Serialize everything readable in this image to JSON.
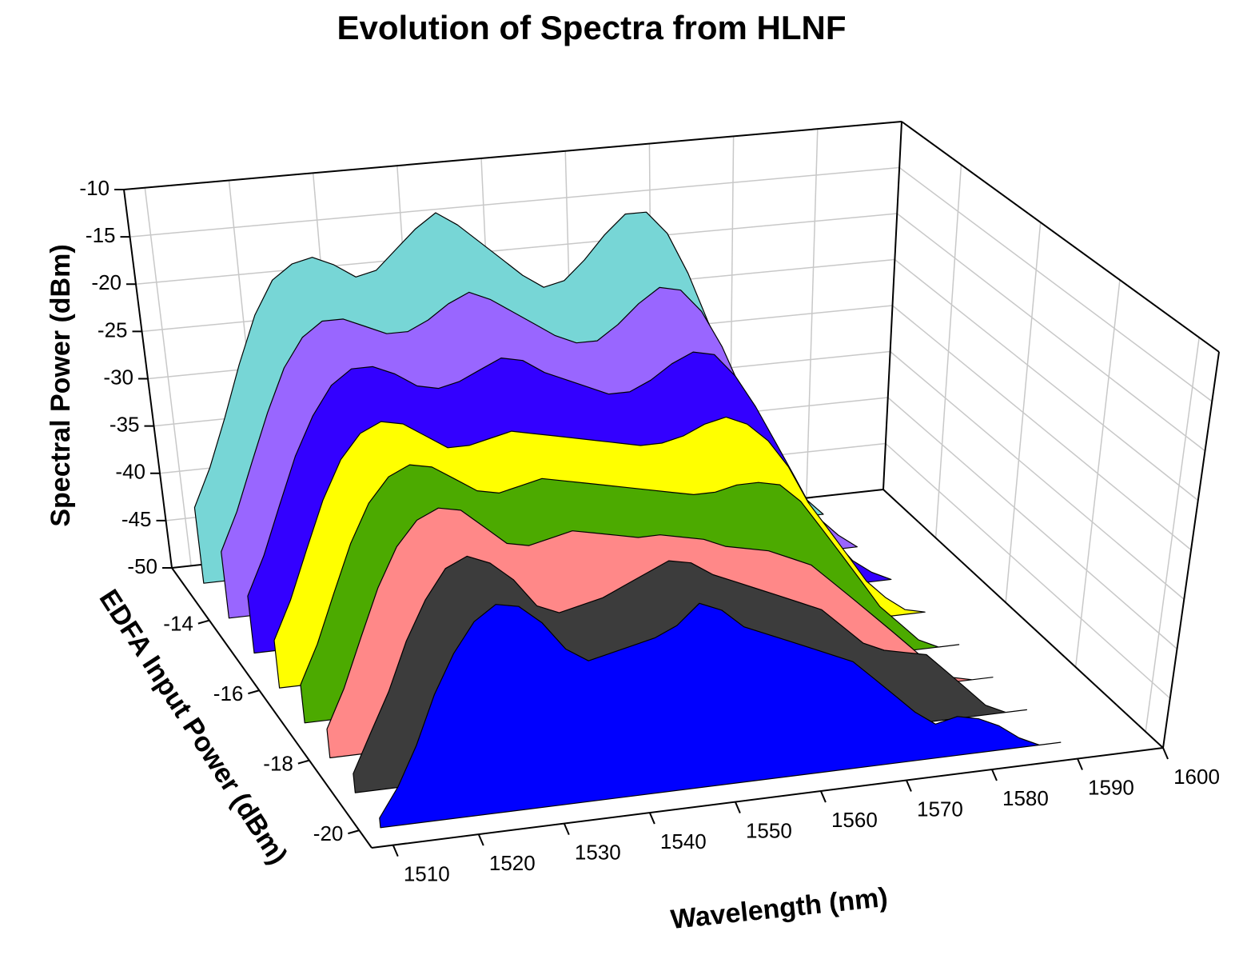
{
  "chart_data": {
    "type": "waterfall3d",
    "title": "Evolution of Spectra from HLNF",
    "xlabel": "Wavelength (nm)",
    "ylabel": "Spectral Power (dBm)",
    "zlabel": "EDFA Input Power (dBm)",
    "xlim": [
      1507.5,
      1600
    ],
    "xticks": [
      1510,
      1520,
      1530,
      1540,
      1550,
      1560,
      1570,
      1580,
      1590,
      1600
    ],
    "ylim": [
      -50,
      -10
    ],
    "yticks": [
      -50,
      -45,
      -40,
      -35,
      -30,
      -25,
      -20,
      -15,
      -10
    ],
    "zlim": [
      -20.5,
      -12.5
    ],
    "zticks": [
      -20,
      -18,
      -16,
      -14
    ],
    "grid": true,
    "x": [
      1510,
      1512.5,
      1515,
      1517.5,
      1520,
      1522.5,
      1525,
      1527.5,
      1530,
      1532.5,
      1535,
      1537.5,
      1540,
      1542.5,
      1545,
      1547.5,
      1550,
      1552.5,
      1555,
      1557.5,
      1560,
      1562.5,
      1565,
      1567.5,
      1570,
      1572.5,
      1575,
      1577.5,
      1580,
      1582.5,
      1585,
      1587.5,
      1590
    ],
    "series": [
      {
        "z": -13,
        "color": "#77d6d6",
        "values": [
          -42,
          -38,
          -33,
          -27.5,
          -22.5,
          -19,
          -17.5,
          -17,
          -18,
          -19.5,
          -19,
          -17,
          -15,
          -13.5,
          -15,
          -17,
          -19,
          -21,
          -22.5,
          -22,
          -20,
          -17.5,
          -15.5,
          -15.5,
          -18,
          -22.5,
          -28,
          -33,
          -38,
          -42,
          -45,
          -48,
          -50
        ]
      },
      {
        "z": -14,
        "color": "#9966ff",
        "values": [
          -43,
          -39,
          -34,
          -29,
          -24.5,
          -21.5,
          -20,
          -20,
          -21,
          -22,
          -22,
          -21,
          -19.5,
          -18.5,
          -19.5,
          -21,
          -22.5,
          -24,
          -25,
          -25,
          -23.5,
          -21.5,
          -20,
          -20.5,
          -23,
          -27,
          -32,
          -36,
          -40,
          -44,
          -46.5,
          -48.5,
          -50
        ]
      },
      {
        "z": -15,
        "color": "#3300ff",
        "values": [
          -44,
          -40,
          -35,
          -30,
          -26,
          -23,
          -21.5,
          -21.5,
          -22.5,
          -24,
          -24.5,
          -24,
          -23,
          -22,
          -22.5,
          -24,
          -25,
          -26,
          -27,
          -27,
          -26,
          -24.5,
          -23.5,
          -24,
          -26.5,
          -30,
          -34,
          -38,
          -42,
          -45,
          -47.5,
          -49,
          -50
        ]
      },
      {
        "z": -16,
        "color": "#ffff00",
        "values": [
          -45,
          -41,
          -36,
          -31,
          -27,
          -24.5,
          -23.5,
          -24,
          -25.5,
          -27,
          -27,
          -26.5,
          -26,
          -26.5,
          -27,
          -27.5,
          -28,
          -28.5,
          -29,
          -29,
          -28.5,
          -27.5,
          -27,
          -28,
          -30,
          -33,
          -37,
          -40,
          -43,
          -46,
          -48,
          -49.5,
          -50
        ]
      },
      {
        "z": -17,
        "color": "#4caa00",
        "values": [
          -46,
          -42,
          -37,
          -32,
          -28,
          -25.5,
          -24.5,
          -25,
          -26.5,
          -28,
          -28.5,
          -28,
          -27.5,
          -28,
          -28.5,
          -29,
          -29.5,
          -30,
          -30.5,
          -31,
          -31,
          -30.5,
          -30.5,
          -31,
          -33,
          -36,
          -39,
          -42,
          -45,
          -47,
          -49,
          -50,
          -50
        ]
      },
      {
        "z": -18,
        "color": "#ff8888",
        "values": [
          -47,
          -43,
          -38,
          -33,
          -29,
          -26.5,
          -25.5,
          -26,
          -28,
          -30,
          -30.5,
          -30,
          -29.5,
          -30,
          -30.5,
          -31,
          -31,
          -31.5,
          -32,
          -33,
          -33.5,
          -34,
          -35,
          -36,
          -38,
          -40,
          -42,
          -44,
          -46,
          -48,
          -49.5,
          -50,
          -50
        ]
      },
      {
        "z": -19,
        "color": "#3c3c3c",
        "values": [
          -48,
          -44,
          -40,
          -35,
          -31,
          -28,
          -27,
          -28,
          -30,
          -33,
          -34,
          -33.5,
          -33,
          -32,
          -31,
          -30,
          -30.5,
          -32,
          -33,
          -34,
          -35,
          -36,
          -37,
          -39,
          -41,
          -42,
          -42.5,
          -43,
          -45,
          -47,
          -49,
          -50,
          -50
        ]
      },
      {
        "z": -20,
        "color": "#0000ff",
        "values": [
          -49,
          -46,
          -42,
          -37,
          -33,
          -30,
          -28.5,
          -29,
          -31,
          -34,
          -35.5,
          -35,
          -34.5,
          -34,
          -33,
          -31,
          -32,
          -34,
          -35,
          -36,
          -37,
          -38,
          -39,
          -41,
          -43,
          -45,
          -46.5,
          -46,
          -46.5,
          -47.5,
          -49,
          -50,
          -50
        ]
      }
    ]
  }
}
